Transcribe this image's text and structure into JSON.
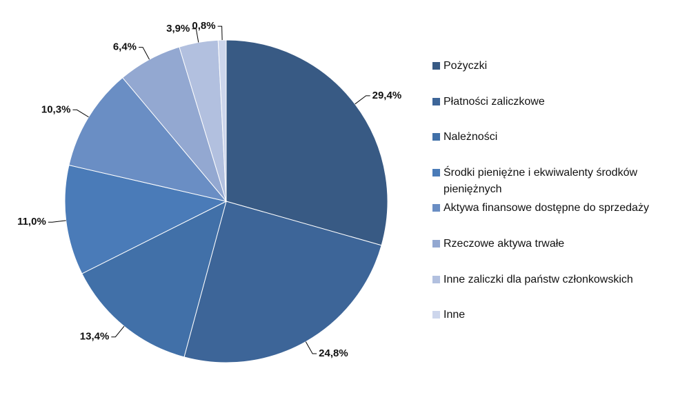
{
  "chart_data": {
    "type": "pie",
    "categories": [
      "Pożyczki",
      "Płatności zaliczkowe",
      "Należności",
      "Środki pieniężne i ekwiwalenty środków pieniężnych",
      "Aktywa finansowe dostępne do sprzedaży",
      "Rzeczowe aktywa trwałe",
      "Inne zaliczki dla państw członkowskich",
      "Inne"
    ],
    "values": [
      29.4,
      24.8,
      13.4,
      11.0,
      10.3,
      6.4,
      3.9,
      0.8
    ],
    "value_labels": [
      "29,4%",
      "24,8%",
      "13,4%",
      "11,0%",
      "10,3%",
      "6,4%",
      "3,9%",
      "0,8%"
    ],
    "colors": [
      "#385a84",
      "#3d6598",
      "#4170a8",
      "#4a7bb8",
      "#6a8ec4",
      "#93a8d1",
      "#b2c0df",
      "#cdd6ec"
    ],
    "legend": "right"
  }
}
